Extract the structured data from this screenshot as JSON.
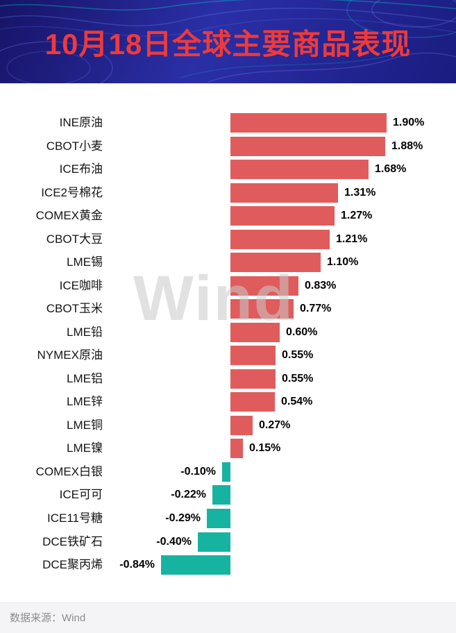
{
  "header": {
    "title": "10月18日全球主要商品表现",
    "title_color": "#ee3a3a",
    "bg_color": "#23259a"
  },
  "watermark": "Wind",
  "footer": {
    "source_label": "数据来源：Wind"
  },
  "chart_data": {
    "type": "bar",
    "orientation": "horizontal",
    "title": "10月18日全球主要商品表现",
    "xlabel": "",
    "ylabel": "",
    "xlim": [
      -1.0,
      2.0
    ],
    "grid": false,
    "legend": "none",
    "unit": "%",
    "positive_color": "#e05c5c",
    "negative_color": "#17b3a1",
    "categories": [
      "INE原油",
      "CBOT小麦",
      "ICE布油",
      "ICE2号棉花",
      "COMEX黄金",
      "CBOT大豆",
      "LME锡",
      "ICE咖啡",
      "CBOT玉米",
      "LME铅",
      "NYMEX原油",
      "LME铝",
      "LME锌",
      "LME铜",
      "LME镍",
      "COMEX白银",
      "ICE可可",
      "ICE11号糖",
      "DCE铁矿石",
      "DCE聚丙烯"
    ],
    "values": [
      1.9,
      1.88,
      1.68,
      1.31,
      1.27,
      1.21,
      1.1,
      0.83,
      0.77,
      0.6,
      0.55,
      0.55,
      0.54,
      0.27,
      0.15,
      -0.1,
      -0.22,
      -0.29,
      -0.4,
      -0.84
    ],
    "value_labels": [
      "1.90%",
      "1.88%",
      "1.68%",
      "1.31%",
      "1.27%",
      "1.21%",
      "1.10%",
      "0.83%",
      "0.77%",
      "0.60%",
      "0.55%",
      "0.55%",
      "0.54%",
      "0.27%",
      "0.15%",
      "-0.10%",
      "-0.22%",
      "-0.29%",
      "-0.40%",
      "-0.84%"
    ]
  }
}
